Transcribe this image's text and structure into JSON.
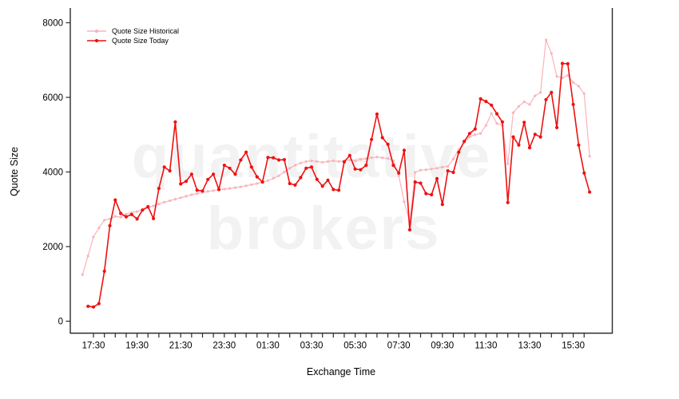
{
  "watermark": {
    "line1": "quantitative",
    "line2": "brokers"
  },
  "chart_data": {
    "type": "line",
    "title": "",
    "xlabel": "Exchange Time",
    "ylabel": "Quote Size",
    "ylim": [
      0,
      8000
    ],
    "y_ticks": [
      0,
      2000,
      4000,
      6000,
      8000
    ],
    "x_tick_labels": [
      "17:30",
      "19:30",
      "21:30",
      "23:30",
      "01:30",
      "03:30",
      "05:30",
      "07:30",
      "09:30",
      "11:30",
      "13:30",
      "15:30"
    ],
    "x_minor_tick_interval_minutes": 30,
    "x_axis_reference_time": "17:30",
    "grid": false,
    "legend_position": "top-left",
    "series": [
      {
        "name": "Quote Size Historical",
        "color": "#f9b4ba",
        "marker": "dot",
        "time_start": "17:00",
        "interval_minutes": 15,
        "values": [
          1250,
          1750,
          2260,
          2500,
          2710,
          2740,
          2810,
          2790,
          2870,
          2910,
          2940,
          2990,
          3040,
          3090,
          3140,
          3190,
          3230,
          3270,
          3310,
          3350,
          3390,
          3420,
          3450,
          3480,
          3500,
          3520,
          3540,
          3560,
          3580,
          3600,
          3630,
          3660,
          3690,
          3730,
          3770,
          3830,
          3900,
          4000,
          4100,
          4180,
          4240,
          4280,
          4300,
          4280,
          4260,
          4280,
          4300,
          4280,
          4300,
          4320,
          4300,
          4340,
          4360,
          4380,
          4400,
          4380,
          4360,
          4300,
          3900,
          3200,
          2650,
          3990,
          4050,
          4060,
          4080,
          4100,
          4130,
          4150,
          4350,
          4600,
          4800,
          4940,
          5000,
          5030,
          5250,
          5570,
          5300,
          5250,
          4220,
          5590,
          5760,
          5880,
          5810,
          6040,
          6130,
          7540,
          7180,
          6560,
          6520,
          6590,
          6400,
          6300,
          6100,
          4420
        ]
      },
      {
        "name": "Quote Size Today",
        "color": "#ee1111",
        "marker": "dot",
        "time_start": "17:15",
        "interval_minutes": 15,
        "values": [
          400,
          380,
          470,
          1340,
          2560,
          3250,
          2890,
          2800,
          2860,
          2740,
          2980,
          3070,
          2750,
          3560,
          4130,
          4030,
          5340,
          3680,
          3750,
          3940,
          3510,
          3490,
          3800,
          3940,
          3530,
          4180,
          4100,
          3940,
          4320,
          4530,
          4130,
          3870,
          3730,
          4390,
          4380,
          4320,
          4330,
          3690,
          3650,
          3850,
          4100,
          4130,
          3800,
          3620,
          3780,
          3530,
          3510,
          4270,
          4440,
          4080,
          4060,
          4180,
          4870,
          5550,
          4920,
          4740,
          4180,
          3970,
          4580,
          2450,
          3730,
          3700,
          3420,
          3390,
          3820,
          3130,
          4030,
          3990,
          4530,
          4820,
          5030,
          5150,
          5960,
          5890,
          5790,
          5560,
          5340,
          3180,
          4940,
          4720,
          5330,
          4650,
          5010,
          4940,
          5940,
          6130,
          5190,
          6910,
          6900,
          5810,
          4720,
          3970,
          3460
        ]
      }
    ]
  }
}
